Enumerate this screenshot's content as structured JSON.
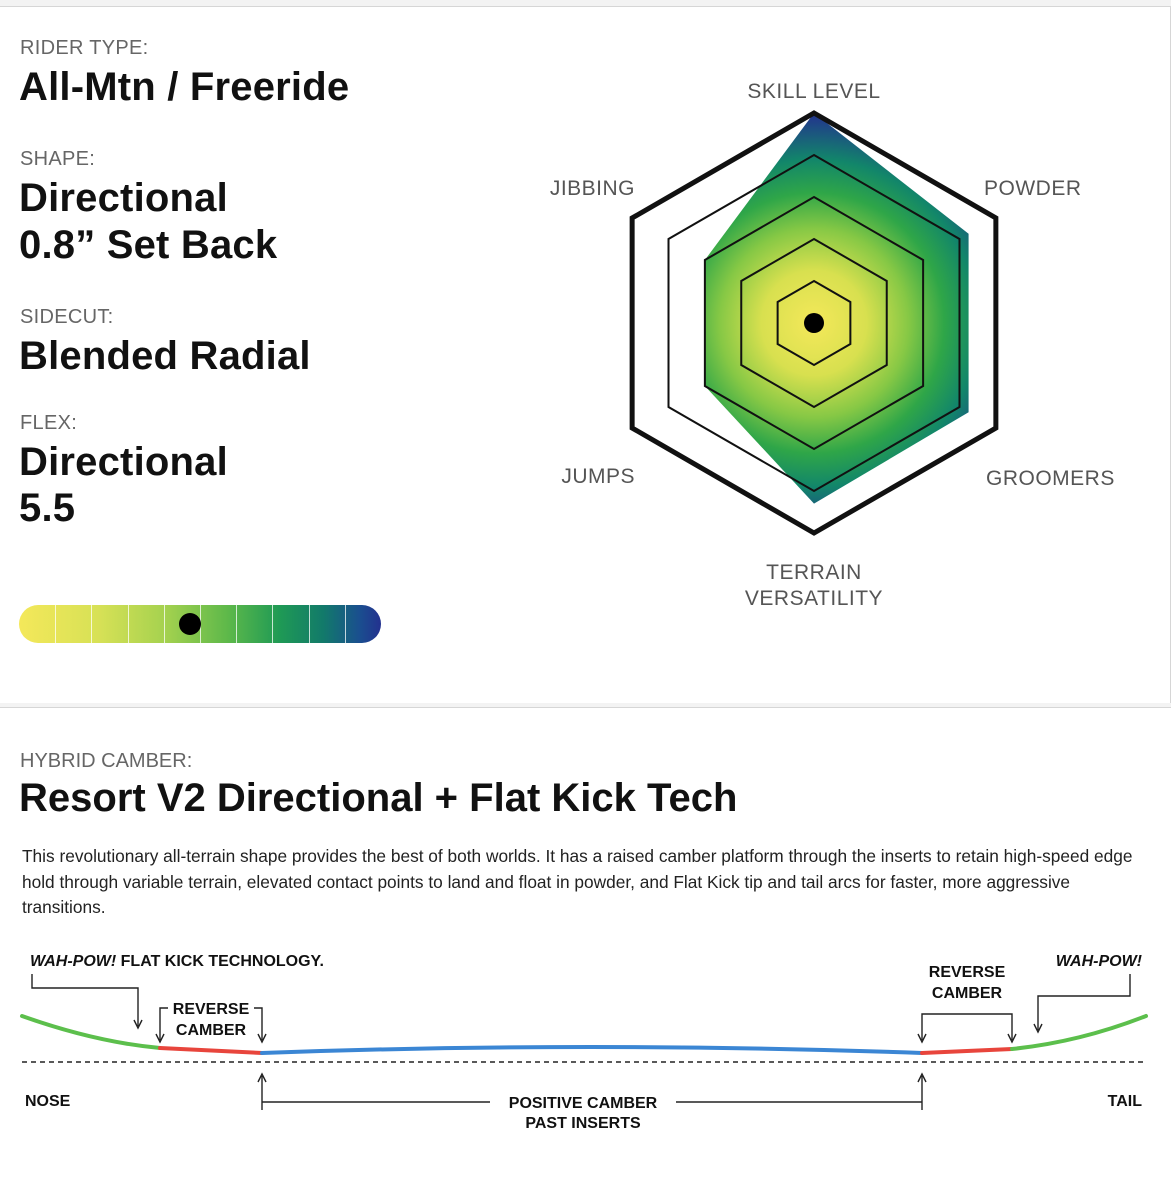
{
  "specs": {
    "rider_type": {
      "label": "RIDER TYPE:",
      "value": "All-Mtn / Freeride"
    },
    "shape": {
      "label": "SHAPE:",
      "value_line1": "Directional",
      "value_line2": "0.8” Set Back"
    },
    "sidecut": {
      "label": "SIDECUT:",
      "value": "Blended Radial"
    },
    "flex": {
      "label": "FLEX:",
      "value_line1": "Directional",
      "value_line2": "5.5",
      "scale_level": 0.5,
      "scale_segments": 10
    }
  },
  "chart_data": {
    "type": "radar",
    "axes": [
      "SKILL LEVEL",
      "POWDER",
      "GROOMERS",
      "TERRAIN VERSATILITY",
      "JUMPS",
      "JIBBING"
    ],
    "axis_label_lines": {
      "skill": [
        "SKILL LEVEL"
      ],
      "powder": [
        "POWDER"
      ],
      "groomers": [
        "GROOMERS"
      ],
      "terrain": [
        "TERRAIN",
        "VERSATILITY"
      ],
      "jumps": [
        "JUMPS"
      ],
      "jibbing": [
        "JIBBING"
      ]
    },
    "rings": 5,
    "max": 5,
    "values": [
      5,
      4.25,
      4.25,
      4.3,
      3.0,
      3.0
    ],
    "colors": {
      "center": "#f4e85a",
      "mid": "#3aae4a",
      "outer": "#23318f"
    }
  },
  "camber": {
    "label": "HYBRID CAMBER:",
    "title": "Resort V2 Directional + Flat Kick Tech",
    "description": "This revolutionary all-terrain shape provides the best of both worlds. It has a raised camber platform through the inserts to retain high-speed edge hold through variable terrain, elevated contact points to land and float in powder, and Flat Kick tip and tail arcs for faster, more aggressive transitions.",
    "diagram": {
      "wah_pow_left": "WAH-POW!",
      "flat_kick": " FLAT KICK TECHNOLOGY.",
      "reverse_camber_line1": "REVERSE",
      "reverse_camber_line2": "CAMBER",
      "wah_pow_right": "WAH-POW!",
      "nose": "NOSE",
      "tail": "TAIL",
      "positive_camber_line1": "POSITIVE CAMBER",
      "positive_camber_line2": "PAST INSERTS",
      "colors": {
        "kick": "#5cbf4c",
        "reverse": "#e8453c",
        "positive": "#3b86d4"
      }
    }
  }
}
